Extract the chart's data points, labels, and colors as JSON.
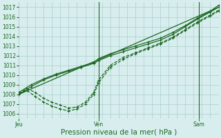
{
  "title": "",
  "xlabel": "Pression niveau de la mer( hPa )",
  "ylabel": "",
  "background_color": "#d8eeee",
  "grid_color": "#aacccc",
  "line_color": "#1a6620",
  "xlim": [
    0,
    48
  ],
  "ylim": [
    1005.5,
    1017.5
  ],
  "yticks": [
    1006,
    1007,
    1008,
    1009,
    1010,
    1011,
    1012,
    1013,
    1014,
    1015,
    1016,
    1017
  ],
  "xtick_positions": [
    0,
    19.2,
    43.2
  ],
  "xtick_labels": [
    "Jeu",
    "Ven",
    "Sam"
  ],
  "vlines": [
    19.2,
    43.2
  ],
  "series": [
    {
      "x": [
        0,
        3,
        6,
        9,
        12,
        15,
        18,
        19.2,
        22,
        25,
        28,
        31,
        34,
        37,
        40,
        43,
        46,
        48
      ],
      "y": [
        1008.0,
        1008.8,
        1009.5,
        1010.0,
        1010.4,
        1010.8,
        1011.2,
        1011.5,
        1012.0,
        1012.4,
        1012.8,
        1013.2,
        1013.6,
        1014.2,
        1015.0,
        1015.8,
        1016.5,
        1017.0
      ],
      "style": "solid",
      "marker": "+"
    },
    {
      "x": [
        0,
        3,
        6,
        9,
        12,
        15,
        18,
        19.2,
        22,
        25,
        28,
        31,
        34,
        37,
        40,
        43,
        46,
        48
      ],
      "y": [
        1008.2,
        1009.0,
        1009.6,
        1010.1,
        1010.5,
        1010.9,
        1011.3,
        1011.7,
        1012.2,
        1012.6,
        1013.0,
        1013.4,
        1013.8,
        1014.4,
        1015.1,
        1015.9,
        1016.6,
        1017.2
      ],
      "style": "solid",
      "marker": "+"
    },
    {
      "x": [
        0,
        48
      ],
      "y": [
        1008.0,
        1017.0
      ],
      "style": "solid",
      "marker": ""
    },
    {
      "x": [
        0,
        2,
        4,
        6,
        8,
        10,
        12,
        14,
        16,
        18,
        19.2,
        22,
        25,
        28,
        31,
        34,
        37,
        40,
        43,
        46,
        48
      ],
      "y": [
        1008.1,
        1008.6,
        1008.2,
        1007.6,
        1007.2,
        1006.9,
        1006.6,
        1006.7,
        1007.2,
        1008.2,
        1009.5,
        1011.0,
        1011.8,
        1012.3,
        1012.8,
        1013.3,
        1013.9,
        1014.7,
        1015.5,
        1016.2,
        1016.7
      ],
      "style": "dashed",
      "marker": "+"
    },
    {
      "x": [
        0,
        2,
        4,
        6,
        8,
        10,
        12,
        14,
        16,
        18,
        19.2,
        22,
        25,
        28,
        31,
        34,
        37,
        40,
        43,
        46,
        48
      ],
      "y": [
        1008.0,
        1008.4,
        1007.8,
        1007.2,
        1006.8,
        1006.5,
        1006.3,
        1006.5,
        1007.0,
        1008.0,
        1009.2,
        1010.8,
        1011.6,
        1012.2,
        1012.7,
        1013.2,
        1013.8,
        1014.6,
        1015.4,
        1016.1,
        1016.6
      ],
      "style": "dashed",
      "marker": "+"
    }
  ],
  "marker_size": 2.5,
  "line_width": 0.9,
  "font_color": "#1a6620",
  "tick_font_size": 5.5,
  "xlabel_font_size": 7.5
}
